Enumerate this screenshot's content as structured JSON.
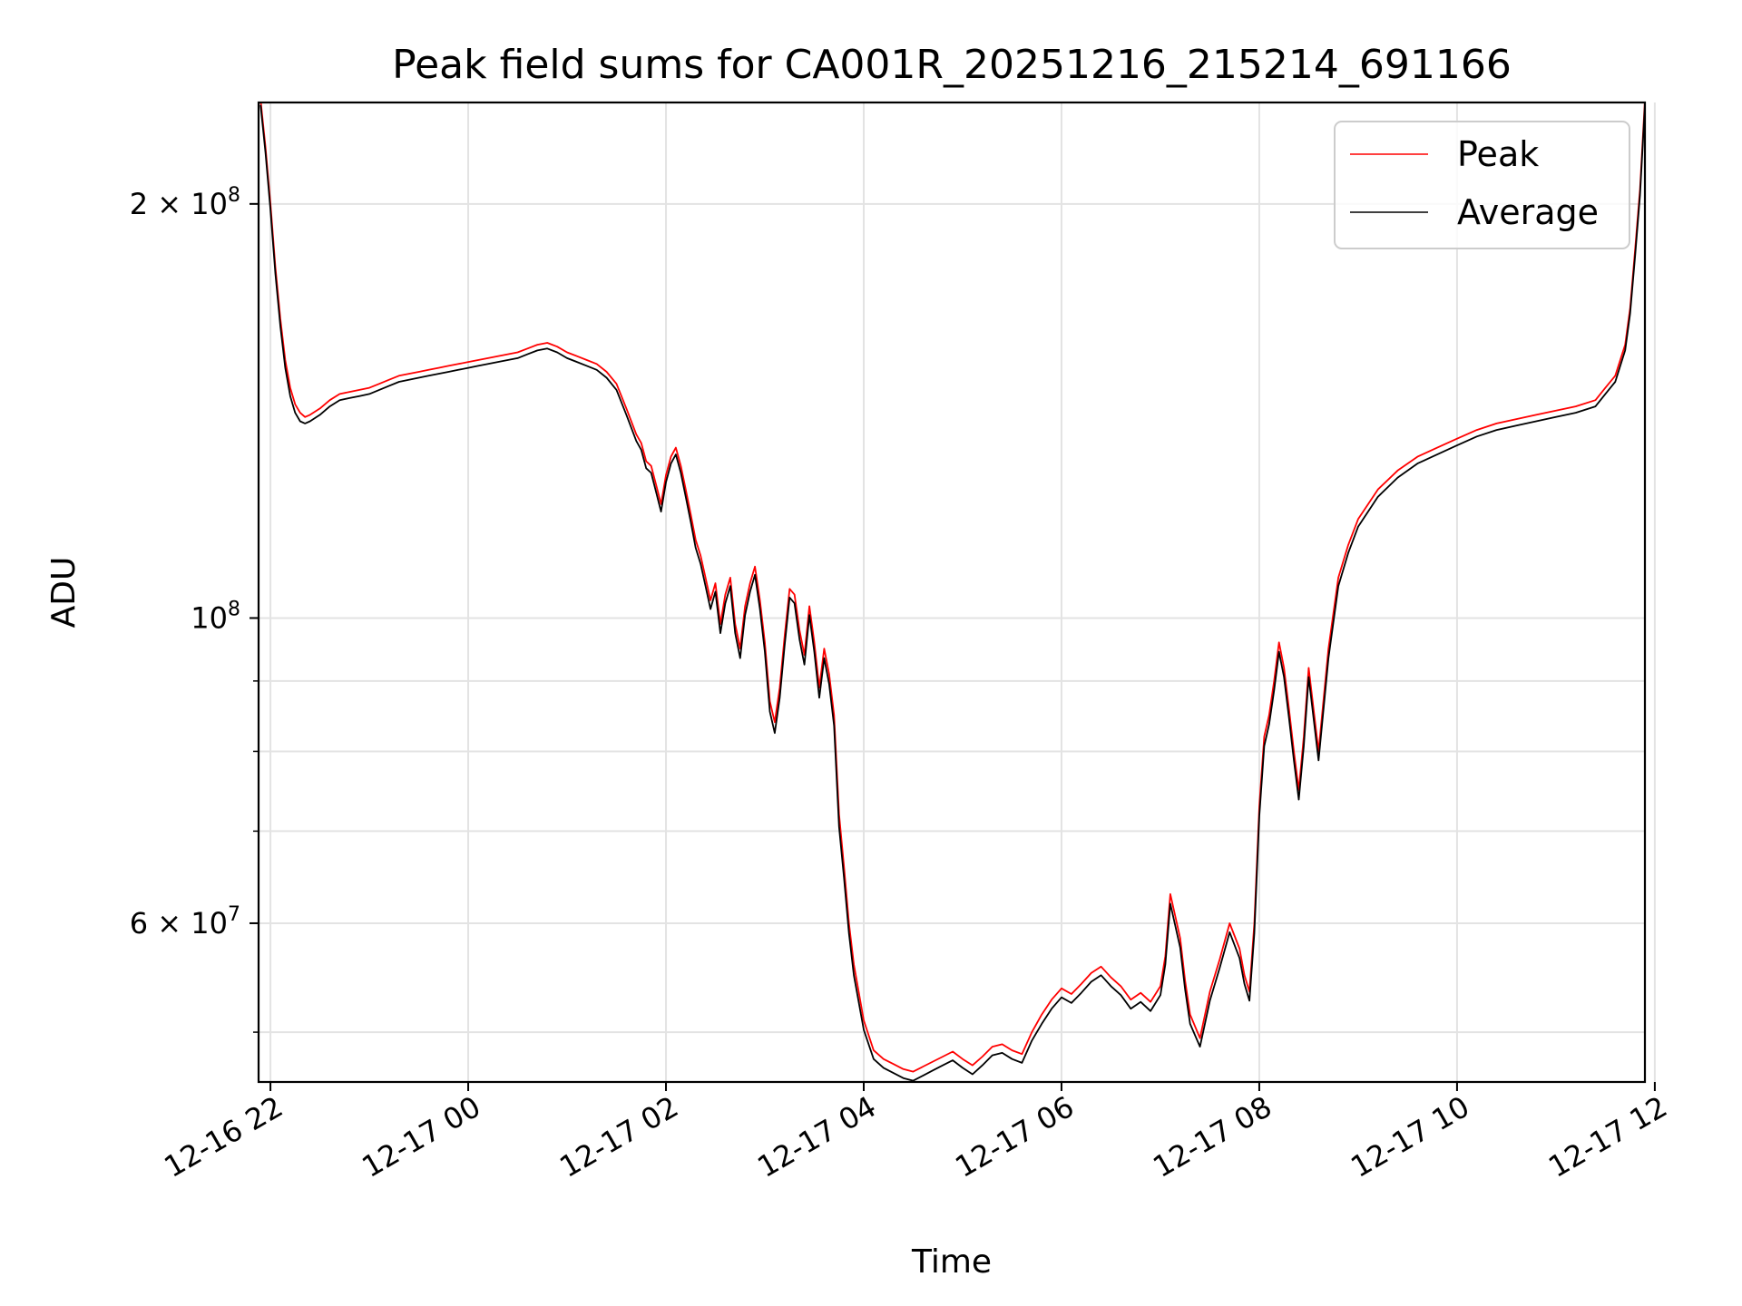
{
  "chart_data": {
    "type": "line",
    "title": "Peak field sums for CA001R_20251216_215214_691166",
    "xlabel": "Time",
    "ylabel": "ADU",
    "yscale": "log",
    "x_unit": "hours since 2025-12-16 00:00",
    "xlim": [
      21.88,
      35.9
    ],
    "ylim": [
      46000000,
      237000000
    ],
    "grid": true,
    "legend_position": "upper right",
    "x_ticks": [
      {
        "value": 22,
        "label": "12-16 22"
      },
      {
        "value": 24,
        "label": "12-17 00"
      },
      {
        "value": 26,
        "label": "12-17 02"
      },
      {
        "value": 28,
        "label": "12-17 04"
      },
      {
        "value": 30,
        "label": "12-17 06"
      },
      {
        "value": 32,
        "label": "12-17 08"
      },
      {
        "value": 34,
        "label": "12-17 10"
      },
      {
        "value": 36,
        "label": "12-17 12"
      }
    ],
    "y_ticks": [
      {
        "value": 200000000,
        "base": "2 × 10",
        "exp": "8"
      },
      {
        "value": 100000000,
        "base": "10",
        "exp": "8"
      },
      {
        "value": 60000000,
        "base": "6 × 10",
        "exp": "7"
      }
    ],
    "y_minor_ticks": [
      50000000,
      70000000,
      80000000,
      90000000
    ],
    "series": [
      {
        "name": "Peak",
        "color": "#ff0000",
        "x": [
          21.9,
          21.95,
          22.0,
          22.05,
          22.1,
          22.15,
          22.2,
          22.25,
          22.3,
          22.35,
          22.4,
          22.5,
          22.6,
          22.7,
          22.8,
          22.9,
          23.0,
          23.1,
          23.2,
          23.3,
          23.4,
          23.5,
          23.6,
          23.7,
          23.8,
          23.9,
          24.0,
          24.1,
          24.2,
          24.3,
          24.4,
          24.5,
          24.6,
          24.7,
          24.8,
          24.9,
          25.0,
          25.1,
          25.2,
          25.3,
          25.4,
          25.5,
          25.6,
          25.7,
          25.75,
          25.8,
          25.85,
          25.9,
          25.95,
          26.0,
          26.05,
          26.1,
          26.15,
          26.2,
          26.25,
          26.3,
          26.35,
          26.4,
          26.45,
          26.5,
          26.55,
          26.6,
          26.65,
          26.7,
          26.75,
          26.8,
          26.85,
          26.9,
          26.95,
          27.0,
          27.05,
          27.1,
          27.15,
          27.2,
          27.25,
          27.3,
          27.35,
          27.4,
          27.45,
          27.5,
          27.55,
          27.6,
          27.65,
          27.7,
          27.75,
          27.8,
          27.85,
          27.9,
          28.0,
          28.1,
          28.2,
          28.3,
          28.4,
          28.5,
          28.6,
          28.7,
          28.8,
          28.9,
          29.0,
          29.1,
          29.2,
          29.3,
          29.4,
          29.5,
          29.6,
          29.7,
          29.8,
          29.9,
          30.0,
          30.1,
          30.2,
          30.3,
          30.4,
          30.5,
          30.6,
          30.7,
          30.8,
          30.9,
          31.0,
          31.05,
          31.1,
          31.2,
          31.25,
          31.3,
          31.4,
          31.5,
          31.6,
          31.7,
          31.8,
          31.85,
          31.9,
          31.95,
          32.0,
          32.05,
          32.1,
          32.15,
          32.2,
          32.25,
          32.3,
          32.35,
          32.4,
          32.45,
          32.5,
          32.6,
          32.7,
          32.8,
          32.9,
          33.0,
          33.2,
          33.4,
          33.6,
          33.8,
          34.0,
          34.2,
          34.4,
          34.6,
          34.8,
          35.0,
          35.2,
          35.4,
          35.5,
          35.6,
          35.7,
          35.75,
          35.8,
          35.85,
          35.9
        ],
        "values": [
          238000000,
          220000000,
          200000000,
          180000000,
          165000000,
          154000000,
          147000000,
          143000000,
          141000000,
          140000000,
          140500000,
          142000000,
          144000000,
          145500000,
          146000000,
          146500000,
          147000000,
          148000000,
          149000000,
          150000000,
          150500000,
          151000000,
          151500000,
          152000000,
          152500000,
          153000000,
          153500000,
          154000000,
          154500000,
          155000000,
          155500000,
          156000000,
          157000000,
          158000000,
          158500000,
          157500000,
          156000000,
          155000000,
          154000000,
          153000000,
          151000000,
          148000000,
          142000000,
          136000000,
          134000000,
          130000000,
          129000000,
          125000000,
          121000000,
          127000000,
          131000000,
          133000000,
          129000000,
          124000000,
          119000000,
          114000000,
          111000000,
          107000000,
          103000000,
          106000000,
          99000000,
          104000000,
          107000000,
          99000000,
          95000000,
          102000000,
          106000000,
          109000000,
          103000000,
          96000000,
          87000000,
          84000000,
          89000000,
          97000000,
          105000000,
          104000000,
          98000000,
          94000000,
          102000000,
          96000000,
          89000000,
          95000000,
          91000000,
          85000000,
          72000000,
          66000000,
          60000000,
          56000000,
          51000000,
          48500000,
          47800000,
          47400000,
          47000000,
          46800000,
          47200000,
          47600000,
          48000000,
          48400000,
          47800000,
          47300000,
          48000000,
          48800000,
          49000000,
          48500000,
          48200000,
          50000000,
          51500000,
          52800000,
          53800000,
          53300000,
          54200000,
          55200000,
          55800000,
          54800000,
          54000000,
          52800000,
          53400000,
          52600000,
          54000000,
          56800000,
          63000000,
          58500000,
          54500000,
          51500000,
          49500000,
          53500000,
          56500000,
          60000000,
          57500000,
          55000000,
          53500000,
          60000000,
          73000000,
          82000000,
          85000000,
          90000000,
          96000000,
          92000000,
          86000000,
          80000000,
          75000000,
          82000000,
          92000000,
          80000000,
          95000000,
          107000000,
          113000000,
          118000000,
          124000000,
          128000000,
          131000000,
          133000000,
          135000000,
          137000000,
          138500000,
          139500000,
          140500000,
          141500000,
          142500000,
          144000000,
          147000000,
          150000000,
          158000000,
          168000000,
          185000000,
          205000000,
          238000000
        ]
      },
      {
        "name": "Average",
        "color": "#000000",
        "x": [
          21.9,
          21.95,
          22.0,
          22.05,
          22.1,
          22.15,
          22.2,
          22.25,
          22.3,
          22.35,
          22.4,
          22.5,
          22.6,
          22.7,
          22.8,
          22.9,
          23.0,
          23.1,
          23.2,
          23.3,
          23.4,
          23.5,
          23.6,
          23.7,
          23.8,
          23.9,
          24.0,
          24.1,
          24.2,
          24.3,
          24.4,
          24.5,
          24.6,
          24.7,
          24.8,
          24.9,
          25.0,
          25.1,
          25.2,
          25.3,
          25.4,
          25.5,
          25.6,
          25.7,
          25.75,
          25.8,
          25.85,
          25.9,
          25.95,
          26.0,
          26.05,
          26.1,
          26.15,
          26.2,
          26.25,
          26.3,
          26.35,
          26.4,
          26.45,
          26.5,
          26.55,
          26.6,
          26.65,
          26.7,
          26.75,
          26.8,
          26.85,
          26.9,
          26.95,
          27.0,
          27.05,
          27.1,
          27.15,
          27.2,
          27.25,
          27.3,
          27.35,
          27.4,
          27.45,
          27.5,
          27.55,
          27.6,
          27.65,
          27.7,
          27.75,
          27.8,
          27.85,
          27.9,
          28.0,
          28.1,
          28.2,
          28.3,
          28.4,
          28.5,
          28.6,
          28.7,
          28.8,
          28.9,
          29.0,
          29.1,
          29.2,
          29.3,
          29.4,
          29.5,
          29.6,
          29.7,
          29.8,
          29.9,
          30.0,
          30.1,
          30.2,
          30.3,
          30.4,
          30.5,
          30.6,
          30.7,
          30.8,
          30.9,
          31.0,
          31.05,
          31.1,
          31.2,
          31.25,
          31.3,
          31.4,
          31.5,
          31.6,
          31.7,
          31.8,
          31.85,
          31.9,
          31.95,
          32.0,
          32.05,
          32.1,
          32.15,
          32.2,
          32.25,
          32.3,
          32.35,
          32.4,
          32.45,
          32.5,
          32.6,
          32.7,
          32.8,
          32.9,
          33.0,
          33.2,
          33.4,
          33.6,
          33.8,
          34.0,
          34.2,
          34.4,
          34.6,
          34.8,
          35.0,
          35.2,
          35.4,
          35.5,
          35.6,
          35.7,
          35.75,
          35.8,
          35.85,
          35.9
        ],
        "values": [
          236000000,
          218000000,
          198000000,
          178000000,
          163000000,
          152000000,
          145000000,
          141000000,
          139000000,
          138500000,
          139000000,
          140500000,
          142500000,
          144000000,
          144500000,
          145000000,
          145500000,
          146500000,
          147500000,
          148500000,
          149000000,
          149500000,
          150000000,
          150500000,
          151000000,
          151500000,
          152000000,
          152500000,
          153000000,
          153500000,
          154000000,
          154500000,
          155500000,
          156500000,
          157000000,
          156000000,
          154500000,
          153500000,
          152500000,
          151500000,
          149500000,
          146500000,
          140500000,
          134500000,
          132500000,
          128500000,
          127500000,
          123500000,
          119500000,
          125500000,
          129500000,
          131500000,
          127500000,
          122500000,
          117500000,
          112500000,
          109500000,
          105500000,
          101500000,
          104500000,
          97500000,
          102500000,
          105500000,
          97500000,
          93500000,
          100500000,
          104500000,
          107500000,
          101500000,
          94500000,
          85500000,
          82500000,
          87500000,
          95500000,
          103500000,
          102500000,
          96500000,
          92500000,
          100500000,
          94500000,
          87500000,
          93500000,
          89500000,
          83500000,
          70500000,
          64800000,
          59000000,
          55000000,
          50200000,
          47800000,
          47100000,
          46700000,
          46300000,
          46100000,
          46500000,
          46900000,
          47300000,
          47700000,
          47100000,
          46600000,
          47300000,
          48100000,
          48300000,
          47800000,
          47500000,
          49300000,
          50700000,
          52000000,
          53000000,
          52500000,
          53400000,
          54400000,
          55000000,
          54000000,
          53200000,
          52000000,
          52600000,
          51800000,
          53200000,
          56000000,
          62000000,
          57600000,
          53700000,
          50700000,
          48800000,
          52700000,
          55700000,
          59100000,
          56600000,
          54200000,
          52700000,
          59000000,
          71800000,
          80700000,
          83700000,
          88600000,
          94500000,
          90600000,
          84700000,
          78800000,
          73800000,
          80700000,
          90600000,
          78800000,
          93500000,
          105500000,
          111500000,
          116500000,
          122500000,
          126500000,
          129500000,
          131500000,
          133500000,
          135500000,
          137000000,
          138000000,
          139000000,
          140000000,
          141000000,
          142500000,
          145500000,
          148500000,
          156500000,
          166500000,
          183000000,
          203000000,
          236000000
        ]
      }
    ]
  }
}
